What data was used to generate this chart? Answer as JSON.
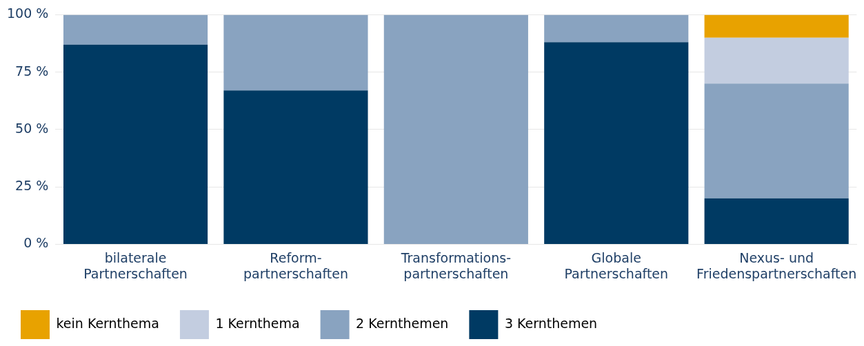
{
  "chart_data": {
    "type": "bar",
    "stacked": true,
    "categories": [
      "bilaterale\nPartnerschaften",
      "Reform-\npartnerschaften",
      "Transformations-\npartnerschaften",
      "Globale\nPartnerschaften",
      "Nexus- und\nFriedenspartnerschaften"
    ],
    "series": [
      {
        "name": "3 Kernthemen",
        "color": "#003a63",
        "values": [
          87,
          67,
          0,
          88,
          20
        ]
      },
      {
        "name": "2 Kernthemen",
        "color": "#89a3c0",
        "values": [
          13,
          33,
          100,
          12,
          50
        ]
      },
      {
        "name": "1 Kernthema",
        "color": "#c3cde0",
        "values": [
          0,
          0,
          0,
          0,
          20
        ]
      },
      {
        "name": "kein Kernthema",
        "color": "#e8a200",
        "values": [
          0,
          0,
          0,
          0,
          10
        ]
      }
    ],
    "ylim": [
      0,
      100
    ],
    "yticks": [
      {
        "value": 0,
        "label": "0 %"
      },
      {
        "value": 25,
        "label": "25 %"
      },
      {
        "value": 50,
        "label": "50 %"
      },
      {
        "value": 75,
        "label": "75 %"
      },
      {
        "value": 100,
        "label": "100 %"
      }
    ],
    "grid": "y",
    "legend": "bottom"
  }
}
